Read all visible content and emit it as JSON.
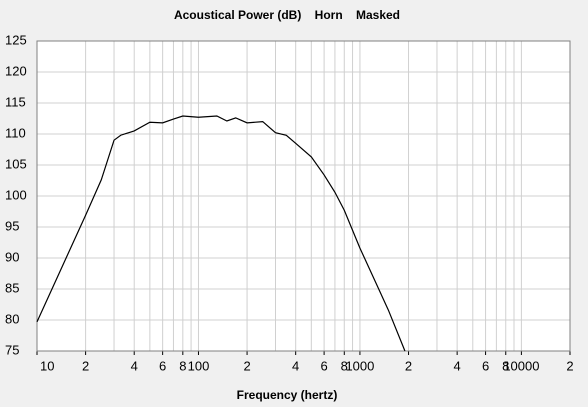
{
  "chart_data": {
    "type": "line",
    "title": "Acoustical Power (dB)    Horn    Masked",
    "x_label": "Frequency (hertz)",
    "x": [
      10,
      20,
      25,
      30,
      33,
      40,
      50,
      60,
      70,
      80,
      100,
      130,
      150,
      170,
      200,
      250,
      300,
      350,
      400,
      500,
      600,
      700,
      800,
      1000,
      1500,
      1900
    ],
    "series": [
      {
        "color": "#000000",
        "values": [
          79.7,
          96.9,
          102.6,
          109,
          109.8,
          110.5,
          111.9,
          111.8,
          112.4,
          112.9,
          112.7,
          112.9,
          112.1,
          112.6,
          111.8,
          112,
          110.2,
          109.8,
          108.5,
          106.3,
          103.4,
          100.6,
          97.7,
          91.6,
          81.6,
          75
        ]
      }
    ],
    "xlim": [
      10,
      20000
    ],
    "xscale": "log",
    "xticks": [
      10,
      {
        "value": 20,
        "label": "2"
      },
      {
        "value": 40,
        "label": "4"
      },
      {
        "value": 60,
        "label": "6"
      },
      {
        "value": 80,
        "label": "8"
      },
      100,
      {
        "value": 200,
        "label": "2"
      },
      {
        "value": 400,
        "label": "4"
      },
      {
        "value": 600,
        "label": "6"
      },
      {
        "value": 800,
        "label": "8"
      },
      1000,
      {
        "value": 2000,
        "label": "2"
      },
      {
        "value": 4000,
        "label": "4"
      },
      {
        "value": 6000,
        "label": "6"
      },
      {
        "value": 8000,
        "label": "8"
      },
      10000,
      {
        "value": 20000,
        "label": "2"
      }
    ],
    "xminor": [
      30,
      50,
      70,
      90,
      300,
      500,
      700,
      900,
      3000,
      5000,
      7000,
      9000
    ],
    "ylim": [
      75,
      125
    ],
    "yticks": [
      75,
      80,
      85,
      90,
      95,
      100,
      105,
      110,
      115,
      120,
      125
    ],
    "grid": true
  }
}
